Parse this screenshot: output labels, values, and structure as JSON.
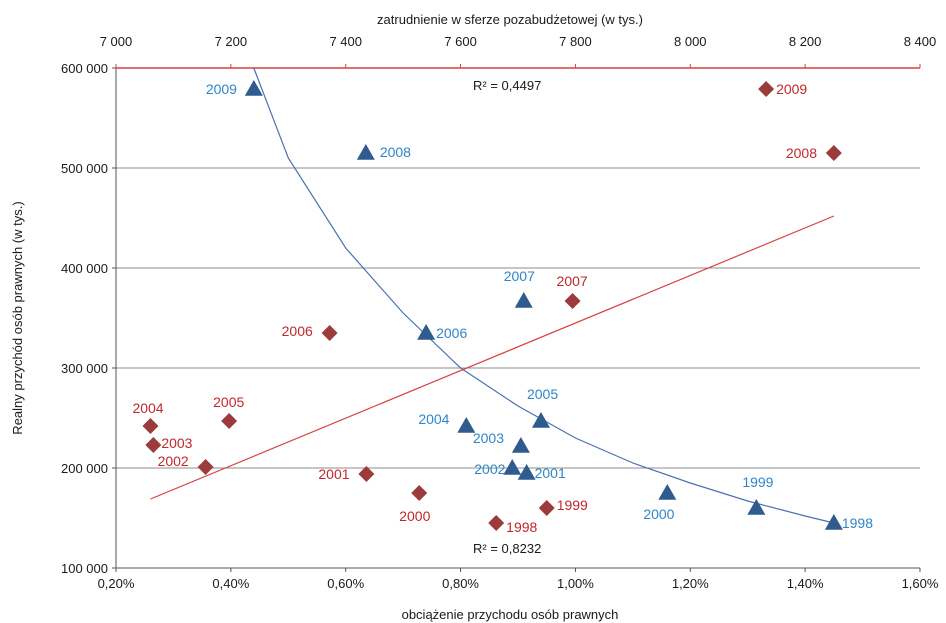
{
  "chart_data": {
    "type": "scatter",
    "title": "",
    "xlabel_bottom": "obciążenie przychodu osób prawnych",
    "xlabel_top": "zatrudnienie w sferze pozabudżetowej (w tys.)",
    "ylabel": "Realny przychód osób prawnych (w tys.)",
    "x_bottom_ticks": [
      "0,20%",
      "0,40%",
      "0,60%",
      "0,80%",
      "1,00%",
      "1,20%",
      "1,40%",
      "1,60%"
    ],
    "x_top_ticks": [
      "7 000",
      "7 200",
      "7 400",
      "7 600",
      "7 800",
      "8 000",
      "8 200",
      "8 400"
    ],
    "y_ticks": [
      "100 000",
      "200 000",
      "300 000",
      "400 000",
      "500 000",
      "600 000"
    ],
    "xlim_bottom": [
      0.002,
      0.016
    ],
    "xlim_top": [
      7000,
      8400
    ],
    "ylim": [
      100000,
      600000
    ],
    "grid": "horizontal",
    "series": [
      {
        "marker": "triangle",
        "color": "#2f5b8f",
        "label_color": "#2e86c8",
        "axis": "top",
        "points": [
          {
            "year": "1998",
            "x": 8250,
            "y": 145000
          },
          {
            "year": "1999",
            "x": 8115,
            "y": 160000
          },
          {
            "year": "2000",
            "x": 7960,
            "y": 175000
          },
          {
            "year": "2001",
            "x": 7715,
            "y": 195000
          },
          {
            "year": "2002",
            "x": 7690,
            "y": 200000
          },
          {
            "year": "2003",
            "x": 7705,
            "y": 222000
          },
          {
            "year": "2004",
            "x": 7610,
            "y": 242000
          },
          {
            "year": "2005",
            "x": 7740,
            "y": 247000
          },
          {
            "year": "2006",
            "x": 7540,
            "y": 335000
          },
          {
            "year": "2007",
            "x": 7710,
            "y": 367000
          },
          {
            "year": "2008",
            "x": 7435,
            "y": 515000
          },
          {
            "year": "2009",
            "x": 7240,
            "y": 579000
          }
        ]
      },
      {
        "marker": "diamond",
        "color": "#9b3b3b",
        "label_color": "#c0282d",
        "axis": "bottom",
        "points": [
          {
            "year": "1998",
            "x": 0.00862,
            "y": 145000
          },
          {
            "year": "1999",
            "x": 0.0095,
            "y": 160000
          },
          {
            "year": "2000",
            "x": 0.00728,
            "y": 175000
          },
          {
            "year": "2001",
            "x": 0.00636,
            "y": 194000
          },
          {
            "year": "2002",
            "x": 0.00356,
            "y": 201000
          },
          {
            "year": "2003",
            "x": 0.00265,
            "y": 223000
          },
          {
            "year": "2004",
            "x": 0.0026,
            "y": 242000
          },
          {
            "year": "2005",
            "x": 0.00397,
            "y": 247000
          },
          {
            "year": "2006",
            "x": 0.00572,
            "y": 335000
          },
          {
            "year": "2007",
            "x": 0.00995,
            "y": 367000
          },
          {
            "year": "2008",
            "x": 0.0145,
            "y": 515000
          },
          {
            "year": "2009",
            "x": 0.01332,
            "y": 579000
          }
        ]
      }
    ],
    "trendlines": [
      {
        "name": "trend-triangles",
        "color": "#4a72b0",
        "axis": "top",
        "type": "power",
        "r2_label": "R² = 0,8232",
        "points": [
          [
            7240,
            600000
          ],
          [
            7300,
            510000
          ],
          [
            7400,
            420000
          ],
          [
            7500,
            355000
          ],
          [
            7600,
            300000
          ],
          [
            7700,
            262000
          ],
          [
            7800,
            230000
          ],
          [
            7900,
            205000
          ],
          [
            8000,
            185000
          ],
          [
            8100,
            167000
          ],
          [
            8200,
            152000
          ],
          [
            8250,
            145000
          ]
        ]
      },
      {
        "name": "trend-diamonds",
        "color": "#d94040",
        "axis": "bottom",
        "type": "linear",
        "r2_label": "R² = 0,4497",
        "points": [
          [
            0.0026,
            169000
          ],
          [
            0.0145,
            452000
          ]
        ]
      }
    ]
  }
}
